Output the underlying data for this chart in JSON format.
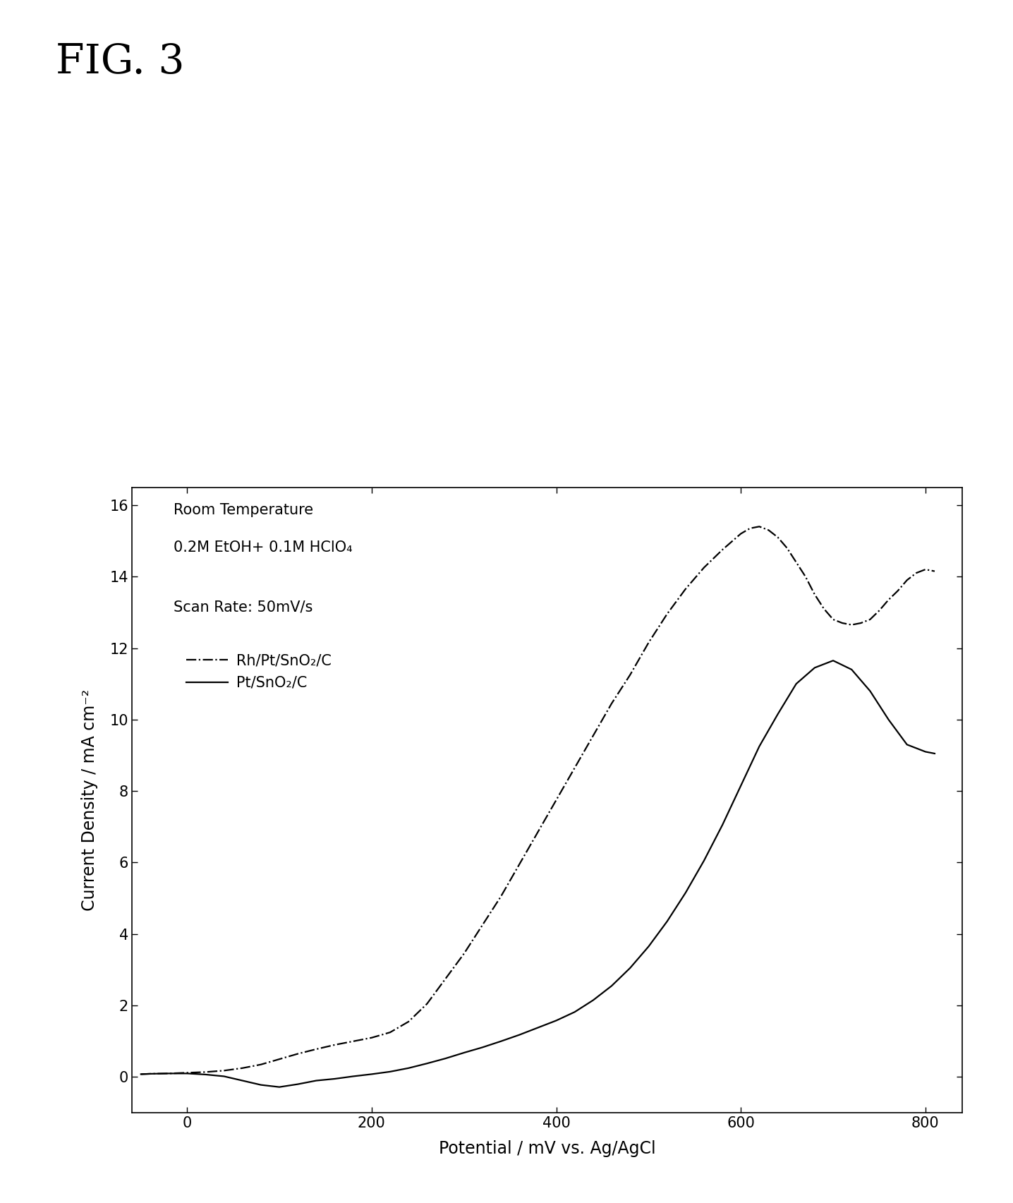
{
  "title": "FIG. 3",
  "xlabel": "Potential / mV vs. Ag/AgCl",
  "ylabel": "Current Density / mA cm⁻²",
  "xlim": [
    -60,
    840
  ],
  "ylim": [
    -1.0,
    16.5
  ],
  "xticks": [
    0,
    200,
    400,
    600,
    800
  ],
  "yticks": [
    0,
    2,
    4,
    6,
    8,
    10,
    12,
    14,
    16
  ],
  "annotation_line1": "Room Temperature",
  "annotation_line2": "0.2M EtOH+ 0.1M HClO₄",
  "annotation_line3": "Scan Rate: 50mV/s",
  "legend_label1": "Rh/Pt/SnO₂/C",
  "legend_label2": "Pt/SnO₂/C",
  "background_color": "#ffffff",
  "line_color": "#000000",
  "rh_pt_x": [
    -50,
    -40,
    -20,
    0,
    20,
    40,
    60,
    80,
    100,
    120,
    140,
    160,
    180,
    200,
    220,
    240,
    260,
    280,
    300,
    320,
    340,
    360,
    380,
    400,
    420,
    440,
    460,
    480,
    500,
    520,
    540,
    560,
    580,
    600,
    610,
    620,
    630,
    640,
    650,
    660,
    670,
    680,
    690,
    700,
    710,
    720,
    730,
    740,
    750,
    760,
    770,
    780,
    790,
    800,
    810
  ],
  "rh_pt_y": [
    0.08,
    0.09,
    0.1,
    0.12,
    0.14,
    0.18,
    0.25,
    0.35,
    0.5,
    0.65,
    0.78,
    0.9,
    1.0,
    1.1,
    1.25,
    1.55,
    2.05,
    2.75,
    3.45,
    4.25,
    5.05,
    5.95,
    6.85,
    7.75,
    8.65,
    9.55,
    10.45,
    11.25,
    12.15,
    12.95,
    13.65,
    14.25,
    14.75,
    15.2,
    15.35,
    15.4,
    15.3,
    15.1,
    14.8,
    14.4,
    14.0,
    13.5,
    13.1,
    12.8,
    12.7,
    12.65,
    12.7,
    12.8,
    13.05,
    13.35,
    13.6,
    13.9,
    14.1,
    14.2,
    14.15
  ],
  "pt_x": [
    -50,
    -40,
    -20,
    0,
    20,
    40,
    60,
    80,
    100,
    120,
    130,
    140,
    160,
    180,
    200,
    220,
    240,
    260,
    280,
    300,
    320,
    340,
    360,
    380,
    400,
    420,
    440,
    460,
    480,
    500,
    520,
    540,
    560,
    580,
    600,
    620,
    640,
    660,
    680,
    700,
    720,
    740,
    760,
    780,
    800,
    810
  ],
  "pt_y": [
    0.08,
    0.09,
    0.1,
    0.1,
    0.07,
    0.02,
    -0.1,
    -0.22,
    -0.28,
    -0.2,
    -0.15,
    -0.1,
    -0.05,
    0.02,
    0.08,
    0.15,
    0.25,
    0.38,
    0.52,
    0.68,
    0.83,
    1.0,
    1.18,
    1.38,
    1.58,
    1.82,
    2.15,
    2.55,
    3.05,
    3.65,
    4.35,
    5.15,
    6.05,
    7.05,
    8.15,
    9.25,
    10.15,
    11.0,
    11.45,
    11.65,
    11.4,
    10.8,
    10.0,
    9.3,
    9.1,
    9.05
  ],
  "fig_width": 14.36,
  "fig_height": 17.05,
  "dpi": 100
}
